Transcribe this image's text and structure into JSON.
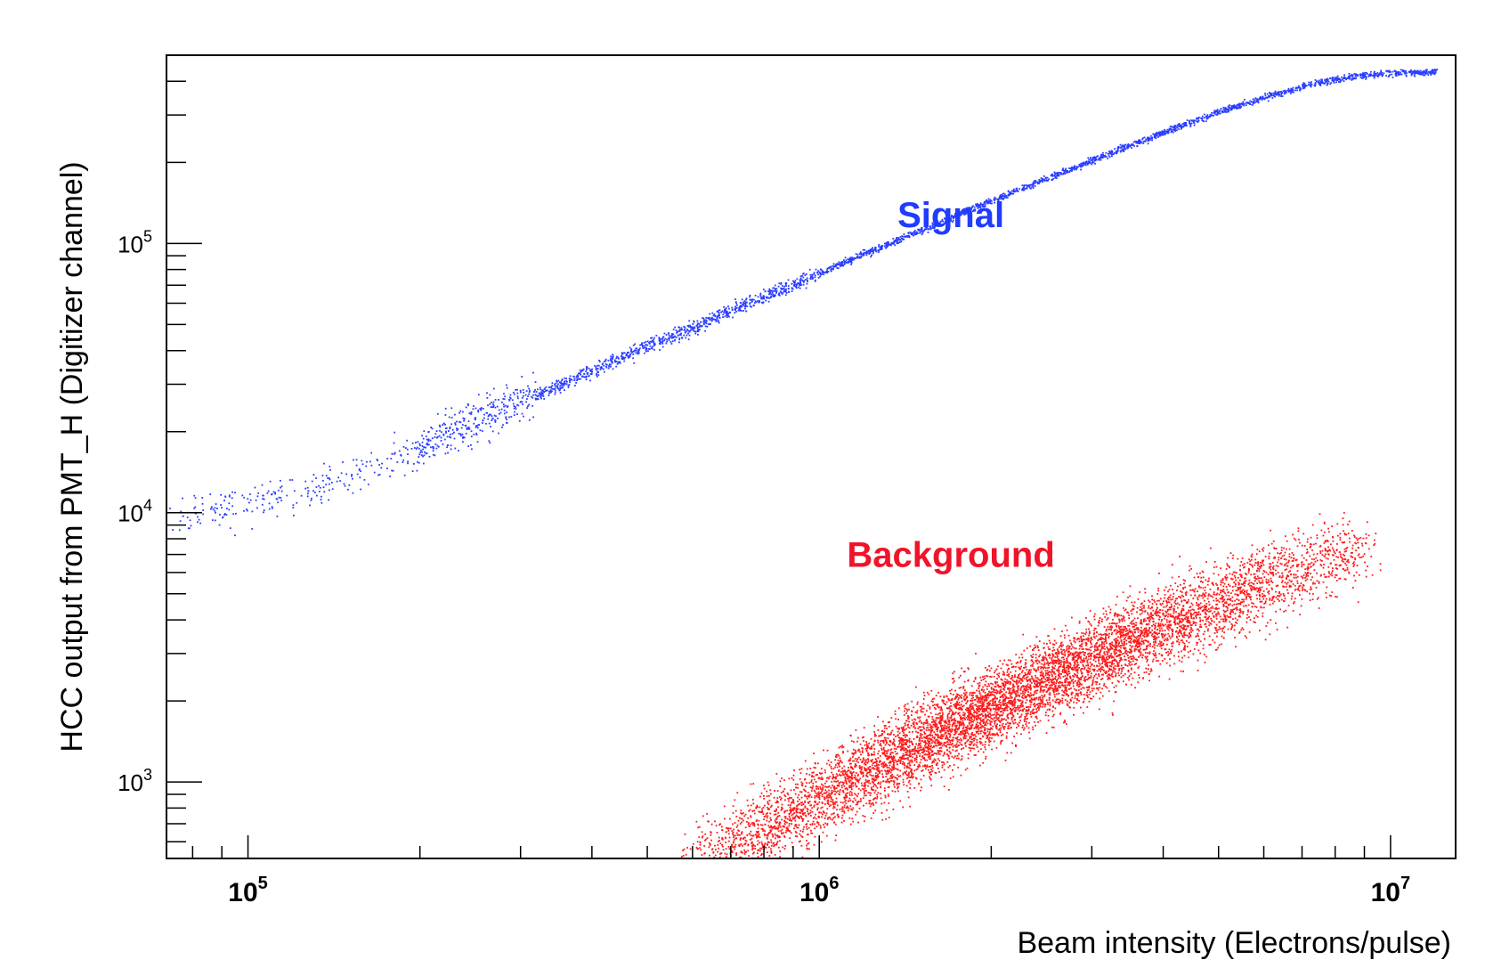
{
  "chart_data": {
    "type": "scatter",
    "xlabel": "Beam intensity (Electrons/pulse)",
    "ylabel": "HCC output from PMT_H (Digitizer channel)",
    "x_scale": "log",
    "y_scale": "log",
    "xlim": [
      72000,
      13000000
    ],
    "ylim": [
      520,
      500000
    ],
    "grid": false,
    "x_ticks": [
      {
        "value": 100000,
        "base": "10",
        "exp": "5"
      },
      {
        "value": 1000000,
        "base": "10",
        "exp": "6"
      },
      {
        "value": 10000000,
        "base": "10",
        "exp": "7"
      }
    ],
    "y_ticks": [
      {
        "value": 1000,
        "base": "10",
        "exp": "3"
      },
      {
        "value": 10000,
        "base": "10",
        "exp": "4"
      },
      {
        "value": 100000,
        "base": "10",
        "exp": "5"
      }
    ],
    "annotations": [
      {
        "text": "Signal",
        "color": "#1f3cff",
        "x": 1700000,
        "y": 115000
      },
      {
        "text": "Background",
        "color": "#f0142a",
        "x": 1700000,
        "y": 6300
      }
    ],
    "series": [
      {
        "color": "#2a3dff",
        "relation": "signal band",
        "points": [
          [
            75000,
            9900
          ],
          [
            80000,
            10000
          ],
          [
            90000,
            10300
          ],
          [
            100000,
            10700
          ],
          [
            120000,
            11800
          ],
          [
            150000,
            13700
          ],
          [
            200000,
            17500
          ],
          [
            250000,
            22000
          ],
          [
            300000,
            26000
          ],
          [
            400000,
            34000
          ],
          [
            500000,
            42000
          ],
          [
            600000,
            49000
          ],
          [
            700000,
            57000
          ],
          [
            800000,
            64000
          ],
          [
            1000000,
            78000
          ],
          [
            1200000,
            92000
          ],
          [
            1500000,
            112000
          ],
          [
            2000000,
            145000
          ],
          [
            2500000,
            175000
          ],
          [
            3000000,
            205000
          ],
          [
            4000000,
            260000
          ],
          [
            5000000,
            310000
          ],
          [
            6000000,
            350000
          ],
          [
            7000000,
            385000
          ],
          [
            8000000,
            410000
          ],
          [
            9000000,
            425000
          ],
          [
            10000000,
            432000
          ],
          [
            12000000,
            436000
          ]
        ]
      },
      {
        "color": "#ff1a1a",
        "relation": "background band",
        "points": [
          [
            600000,
            480
          ],
          [
            700000,
            560
          ],
          [
            800000,
            680
          ],
          [
            1000000,
            880
          ],
          [
            1200000,
            1080
          ],
          [
            1500000,
            1400
          ],
          [
            2000000,
            1900
          ],
          [
            2500000,
            2400
          ],
          [
            3000000,
            2900
          ],
          [
            4000000,
            3800
          ],
          [
            5000000,
            4700
          ],
          [
            6000000,
            5500
          ],
          [
            7000000,
            6300
          ],
          [
            8000000,
            7000
          ],
          [
            9000000,
            7600
          ]
        ]
      }
    ]
  }
}
